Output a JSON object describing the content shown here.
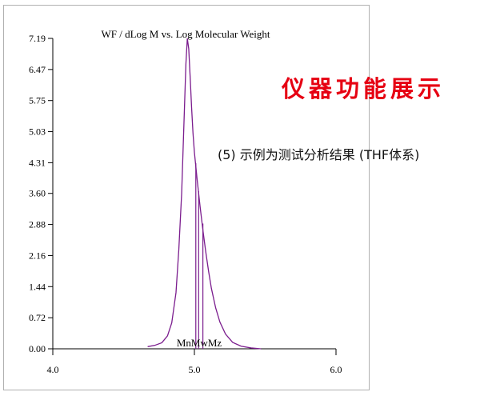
{
  "banner": {
    "title": "仪器功能展示",
    "caption": "(5) 示例为测试分析结果 (THF体系)",
    "title_color": "#e60012"
  },
  "chart_data": {
    "type": "line",
    "title": "WF / dLog M vs. Log Molecular Weight",
    "xlabel": "",
    "ylabel": "",
    "xlim": [
      4.0,
      6.0
    ],
    "ylim": [
      0.0,
      7.19
    ],
    "x_ticks": [
      "4.0",
      "5.0",
      "6.0"
    ],
    "y_ticks": [
      "0.00",
      "0.72",
      "1.44",
      "2.16",
      "2.88",
      "3.60",
      "4.31",
      "5.03",
      "5.75",
      "6.47",
      "7.19"
    ],
    "series": [
      {
        "color": "#7b1d8e",
        "x": [
          4.67,
          4.72,
          4.77,
          4.81,
          4.84,
          4.87,
          4.89,
          4.91,
          4.92,
          4.93,
          4.94,
          4.95,
          4.96,
          4.97,
          4.98,
          4.99,
          5.0,
          5.02,
          5.04,
          5.06,
          5.08,
          5.1,
          5.12,
          5.15,
          5.18,
          5.22,
          5.27,
          5.33,
          5.4,
          5.47
        ],
        "y": [
          0.05,
          0.08,
          0.14,
          0.3,
          0.6,
          1.3,
          2.3,
          3.6,
          4.6,
          5.6,
          6.6,
          7.19,
          6.95,
          6.3,
          5.6,
          5.0,
          4.55,
          3.9,
          3.3,
          2.75,
          2.25,
          1.8,
          1.4,
          0.95,
          0.62,
          0.34,
          0.15,
          0.06,
          0.02,
          0.0
        ]
      }
    ],
    "markers": [
      {
        "label": "Mn",
        "x": 5.01,
        "y": 4.3
      },
      {
        "label": "Mw",
        "x": 5.03,
        "y": 3.65
      },
      {
        "label": "Mz",
        "x": 5.06,
        "y": 2.9
      }
    ],
    "marker_label_text": "MnMwMz",
    "colors": {
      "line": "#7b1d8e",
      "axis": "#000000",
      "frame": "#b0b0b0"
    }
  }
}
